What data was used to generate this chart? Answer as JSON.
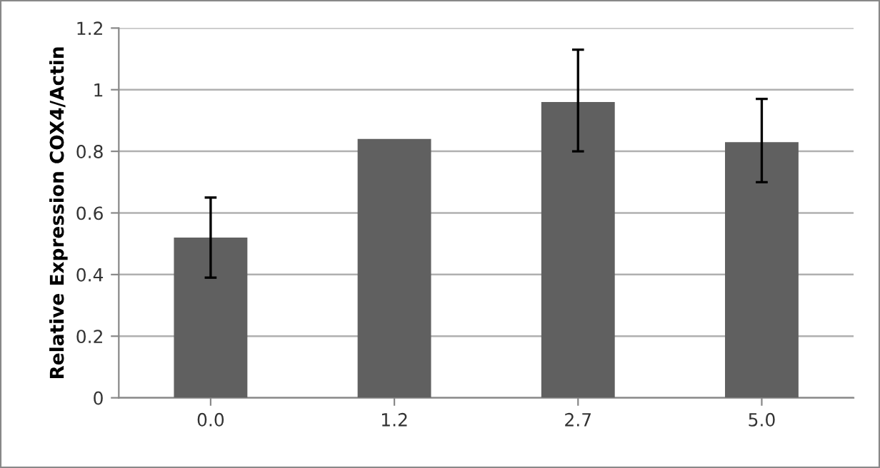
{
  "chart_data": {
    "type": "bar",
    "ylabel": "Relative Expression COX4/Actin",
    "categories": [
      "0.0",
      "1.2",
      "2.7",
      "5.0"
    ],
    "values": [
      0.52,
      0.84,
      0.96,
      0.83
    ],
    "errors": [
      [
        0.39,
        0.65
      ],
      null,
      [
        0.8,
        1.13
      ],
      [
        0.7,
        0.97
      ]
    ],
    "color": "#606060",
    "ylim": [
      0,
      1.2
    ],
    "yticks": [
      0,
      0.2,
      0.4,
      0.6,
      0.8,
      {
        "value": 1,
        "label": "1"
      },
      1.2
    ],
    "grid": "y"
  }
}
